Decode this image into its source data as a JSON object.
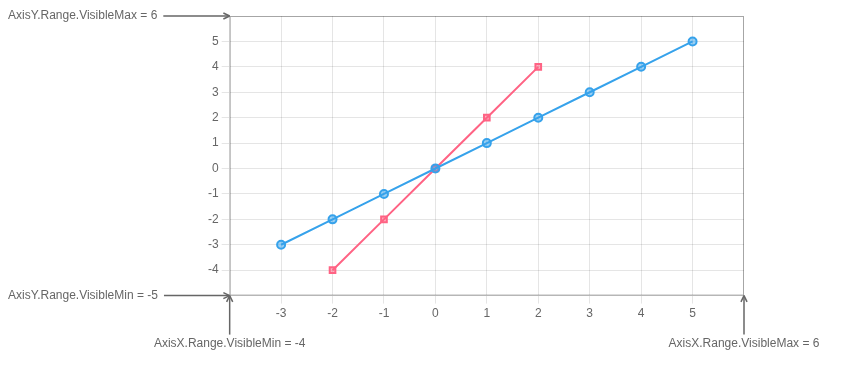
{
  "chart_data": {
    "type": "line",
    "series": [
      {
        "x": [
          -3,
          -2,
          -1,
          0,
          1,
          2,
          3,
          4,
          5
        ],
        "values": [
          -3,
          -2,
          -1,
          0,
          1,
          2,
          3,
          4,
          5
        ],
        "marker": "circle"
      },
      {
        "x": [
          -2,
          -1,
          0,
          1,
          2
        ],
        "values": [
          -4,
          -2,
          0,
          2,
          4
        ],
        "marker": "square"
      }
    ],
    "xlim": [
      -4,
      6
    ],
    "ylim": [
      -5,
      6
    ],
    "xticks": [
      -3,
      -2,
      -1,
      0,
      1,
      2,
      3,
      4,
      5
    ],
    "yticks": [
      -4,
      -3,
      -2,
      -1,
      0,
      1,
      2,
      3,
      4,
      5
    ],
    "grid": true,
    "annotations": [
      {
        "text": "AxisY.Range.VisibleMax = 6",
        "axis": "y",
        "value": 6
      },
      {
        "text": "AxisY.Range.VisibleMin = -5",
        "axis": "y",
        "value": -5
      },
      {
        "text": "AxisX.Range.VisibleMin = -4",
        "axis": "x",
        "value": -4
      },
      {
        "text": "AxisX.Range.VisibleMax = 6",
        "axis": "x",
        "value": 6
      }
    ]
  }
}
